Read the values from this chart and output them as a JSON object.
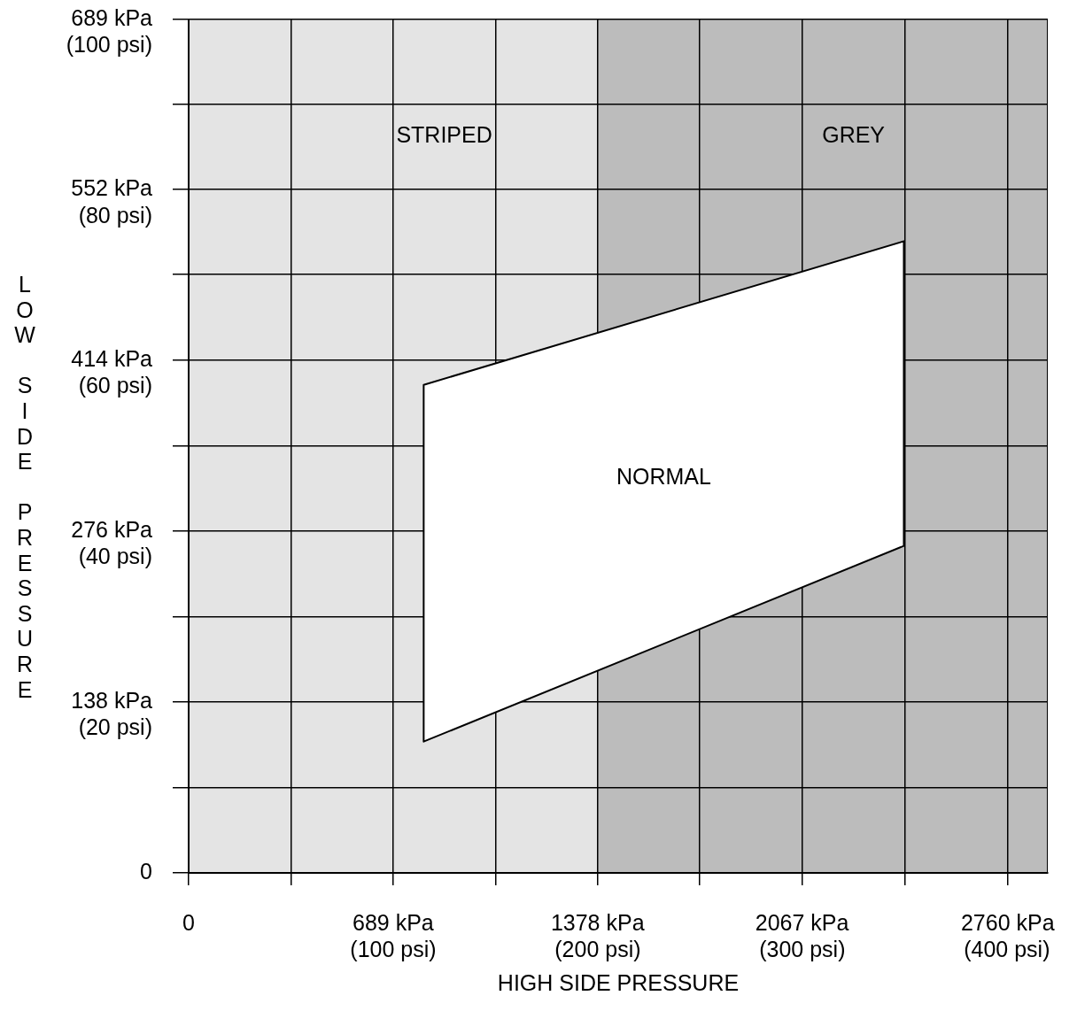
{
  "chart_data": {
    "type": "area",
    "xlabel": "HIGH SIDE PRESSURE",
    "ylabel": "LOW SIDE PRESSURE",
    "xlim": [
      0,
      2895
    ],
    "xticks": [
      0,
      {
        "value": 344.5,
        "label": null
      },
      {
        "value": 689,
        "label": "689 kPa"
      },
      {
        "value": 1033.5,
        "label": null
      },
      {
        "value": 1378,
        "label": "1378 kPa"
      },
      {
        "value": 1722.5,
        "label": null
      },
      {
        "value": 2067,
        "label": "2067 kPa"
      },
      {
        "value": 2413.5,
        "label": null
      },
      {
        "value": 2760,
        "label": "2760 kPa"
      }
    ],
    "x2lim": [
      0,
      420
    ],
    "x2ticks": [
      {
        "value": 100,
        "label": "(100 psi)"
      },
      {
        "value": 200,
        "label": "(200 psi)"
      },
      {
        "value": 300,
        "label": "(300 psi)"
      },
      {
        "value": 400,
        "label": "(400 psi)"
      }
    ],
    "ylim": [
      0,
      689
    ],
    "yticks": [
      0,
      {
        "value": 69,
        "label": null
      },
      {
        "value": 138,
        "label": "138 kPa"
      },
      {
        "value": 207,
        "label": null
      },
      {
        "value": 276,
        "label": "276 kPa"
      },
      {
        "value": 345,
        "label": null
      },
      {
        "value": 414,
        "label": "414 kPa"
      },
      {
        "value": 483,
        "label": null
      },
      {
        "value": 552,
        "label": "552 kPa"
      },
      {
        "value": 620.5,
        "label": null
      },
      {
        "value": 689,
        "label": "689 kPa"
      }
    ],
    "y2lim": [
      0,
      100
    ],
    "y2ticks": [
      {
        "value": 20,
        "label": "(20 psi)"
      },
      {
        "value": 40,
        "label": "(40 psi)"
      },
      {
        "value": 60,
        "label": "(60 psi)"
      },
      {
        "value": 80,
        "label": "(80 psi)"
      },
      {
        "value": 100,
        "label": "(100 psi)"
      }
    ],
    "series": [
      {
        "name": "NORMAL",
        "color": "#000000",
        "x": [
          792,
          2410
        ],
        "values": [
          null,
          null
        ],
        "lower": [
          106,
          264
        ],
        "upper": [
          394,
          510
        ]
      }
    ],
    "bands": [
      {
        "axis": "x",
        "from": 0,
        "to": 1378,
        "label": "STRIPED",
        "color": "#e4e4e4"
      },
      {
        "axis": "x",
        "from": 1378,
        "to": 2895,
        "label": "GREY",
        "color": "#bcbcbc"
      }
    ],
    "grid": true
  }
}
